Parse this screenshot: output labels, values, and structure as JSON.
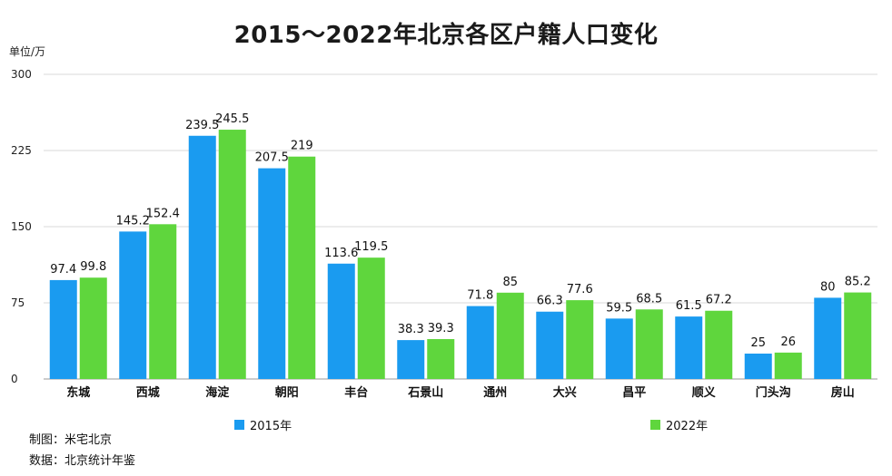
{
  "chart_data": {
    "type": "bar",
    "title": "2015～2022年北京各区户籍人口变化",
    "ylabel": "单位/万",
    "xlabel": "",
    "ylim": [
      0,
      300
    ],
    "yticks": [
      0,
      75,
      150,
      225,
      300
    ],
    "categories": [
      "东城",
      "西城",
      "海淀",
      "朝阳",
      "丰台",
      "石景山",
      "通州",
      "大兴",
      "昌平",
      "顺义",
      "门头沟",
      "房山"
    ],
    "series": [
      {
        "name": "2015年",
        "color": "#1a9bf0",
        "values": [
          97.4,
          145.2,
          239.5,
          207.5,
          113.6,
          38.3,
          71.8,
          66.3,
          59.5,
          61.5,
          25,
          80
        ],
        "labels": [
          "97.4",
          "145.2",
          "239.5",
          "207.5",
          "113.6",
          "38.3",
          "71.8",
          "66.3",
          "59.5",
          "61.5",
          "25",
          "80"
        ]
      },
      {
        "name": "2022年",
        "color": "#5fd63d",
        "values": [
          99.8,
          152.4,
          245.5,
          219,
          119.5,
          39.3,
          85,
          77.6,
          68.5,
          67.2,
          26,
          85.2
        ],
        "labels": [
          "99.8",
          "152.4",
          "245.5",
          "219",
          "119.5",
          "39.3",
          "85",
          "77.6",
          "68.5",
          "67.2",
          "26",
          "85.2"
        ]
      }
    ],
    "grid": true,
    "legend": "bottom"
  },
  "footer": {
    "made_by": "制图：米宅北京",
    "source": "数据：北京统计年鉴"
  }
}
